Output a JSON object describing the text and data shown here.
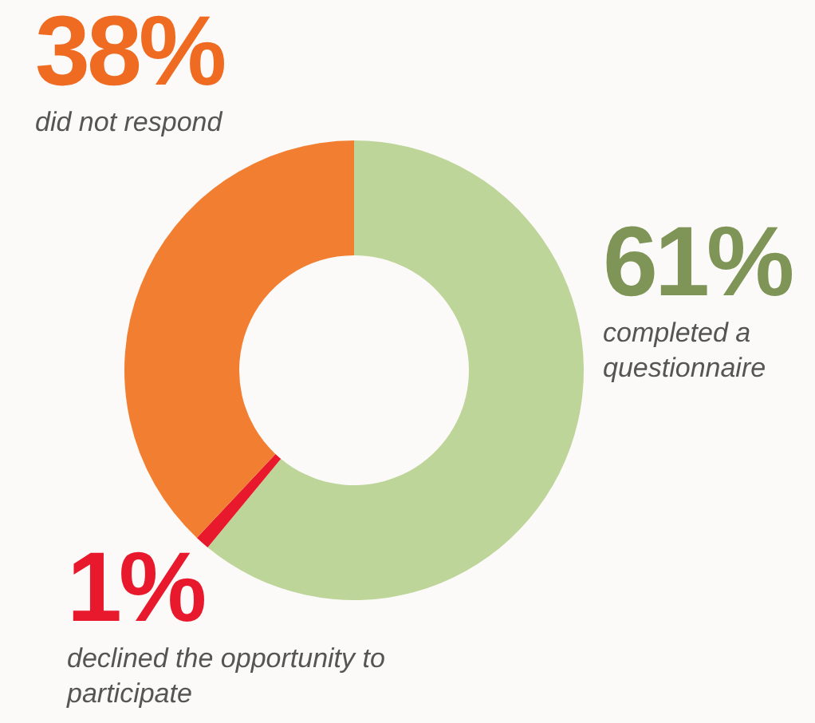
{
  "chart_data": {
    "type": "donut",
    "categories": [
      "completed a questionnaire",
      "declined the opportunity to participate",
      "did not respond"
    ],
    "values": [
      61,
      1,
      38
    ],
    "value_labels": [
      "61%",
      "1%",
      "38%"
    ],
    "colors": [
      "#bdd598",
      "#e8192c",
      "#f27f31"
    ]
  }
}
